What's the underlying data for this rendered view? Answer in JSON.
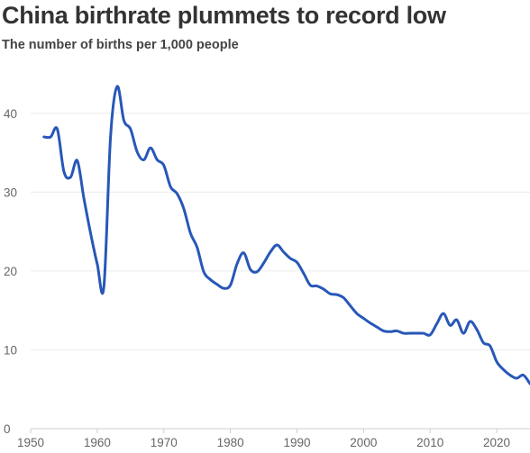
{
  "title": "China birthrate plummets to record low",
  "subtitle": "The number of births per 1,000 people",
  "colors": {
    "line": "#2757b8",
    "grid": "#ececec",
    "axis": "#cccccc",
    "text": "#333333",
    "tick_text": "#666666"
  },
  "chart_data": {
    "type": "line",
    "title": "China birthrate plummets to record low",
    "subtitle": "The number of births per 1,000 people",
    "xlabel": "",
    "ylabel": "",
    "xlim": [
      1950,
      2025
    ],
    "ylim": [
      0,
      45
    ],
    "xticks": [
      1950,
      1960,
      1970,
      1980,
      1990,
      2000,
      2010,
      2020
    ],
    "yticks": [
      0,
      10,
      20,
      30,
      40
    ],
    "grid": "horizontal",
    "legend": "none",
    "series": [
      {
        "x": [
          1952,
          1953,
          1954,
          1955,
          1956,
          1957,
          1958,
          1959,
          1960,
          1961,
          1962,
          1963,
          1964,
          1965,
          1966,
          1967,
          1968,
          1969,
          1970,
          1971,
          1972,
          1973,
          1974,
          1975,
          1976,
          1977,
          1978,
          1979,
          1980,
          1981,
          1982,
          1983,
          1984,
          1985,
          1986,
          1987,
          1988,
          1989,
          1990,
          1991,
          1992,
          1993,
          1994,
          1995,
          1996,
          1997,
          1998,
          1999,
          2000,
          2001,
          2002,
          2003,
          2004,
          2005,
          2006,
          2007,
          2008,
          2009,
          2010,
          2011,
          2012,
          2013,
          2014,
          2015,
          2016,
          2017,
          2018,
          2019,
          2020,
          2021,
          2022,
          2023,
          2024,
          2025
        ],
        "values": [
          37.0,
          37.0,
          38.0,
          32.6,
          31.9,
          34.0,
          29.2,
          24.8,
          20.9,
          18.0,
          37.0,
          43.4,
          39.1,
          38.0,
          35.1,
          34.1,
          35.6,
          34.1,
          33.4,
          30.7,
          29.8,
          27.9,
          24.8,
          23.0,
          19.9,
          18.9,
          18.3,
          17.8,
          18.2,
          20.9,
          22.3,
          20.2,
          19.9,
          21.0,
          22.4,
          23.3,
          22.4,
          21.6,
          21.1,
          19.7,
          18.2,
          18.1,
          17.7,
          17.1,
          17.0,
          16.6,
          15.6,
          14.6,
          14.0,
          13.4,
          12.9,
          12.4,
          12.3,
          12.4,
          12.1,
          12.1,
          12.1,
          12.1,
          11.9,
          13.3,
          14.6,
          13.1,
          13.8,
          12.1,
          13.6,
          12.6,
          10.9,
          10.5,
          8.5,
          7.5,
          6.8,
          6.4,
          6.8,
          5.7
        ]
      }
    ]
  }
}
